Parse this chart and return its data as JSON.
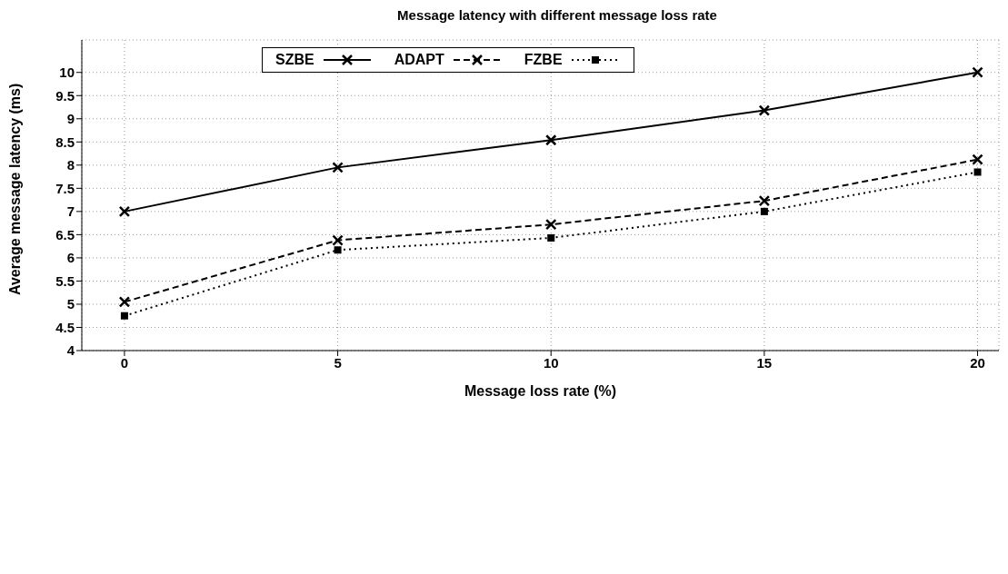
{
  "chart_data": {
    "type": "line",
    "title": "Message latency with different message loss rate",
    "xlabel": "Message loss rate (%)",
    "ylabel": "Average message latency (ms)",
    "x": [
      0,
      5,
      10,
      15,
      20
    ],
    "xlim": [
      -1,
      20.5
    ],
    "xticks": [
      0,
      5,
      10,
      15,
      20
    ],
    "ylim": [
      4,
      10.7
    ],
    "yticks": [
      4,
      4.5,
      5,
      5.5,
      6,
      6.5,
      7,
      7.5,
      8,
      8.5,
      9,
      9.5,
      10
    ],
    "grid": true,
    "legend": "top",
    "series": [
      {
        "name": "SZBE",
        "color": "#000000",
        "values": [
          7.0,
          7.95,
          8.54,
          9.18,
          10.0
        ],
        "marker": "cross",
        "line_style": "solid"
      },
      {
        "name": "ADAPT",
        "color": "#000000",
        "values": [
          5.05,
          6.38,
          6.72,
          7.23,
          8.12
        ],
        "marker": "cross",
        "line_style": "dashed"
      },
      {
        "name": "FZBE",
        "color": "#000000",
        "values": [
          4.75,
          6.17,
          6.43,
          7.0,
          7.85
        ],
        "marker": "square",
        "line_style": "dotted"
      }
    ]
  }
}
